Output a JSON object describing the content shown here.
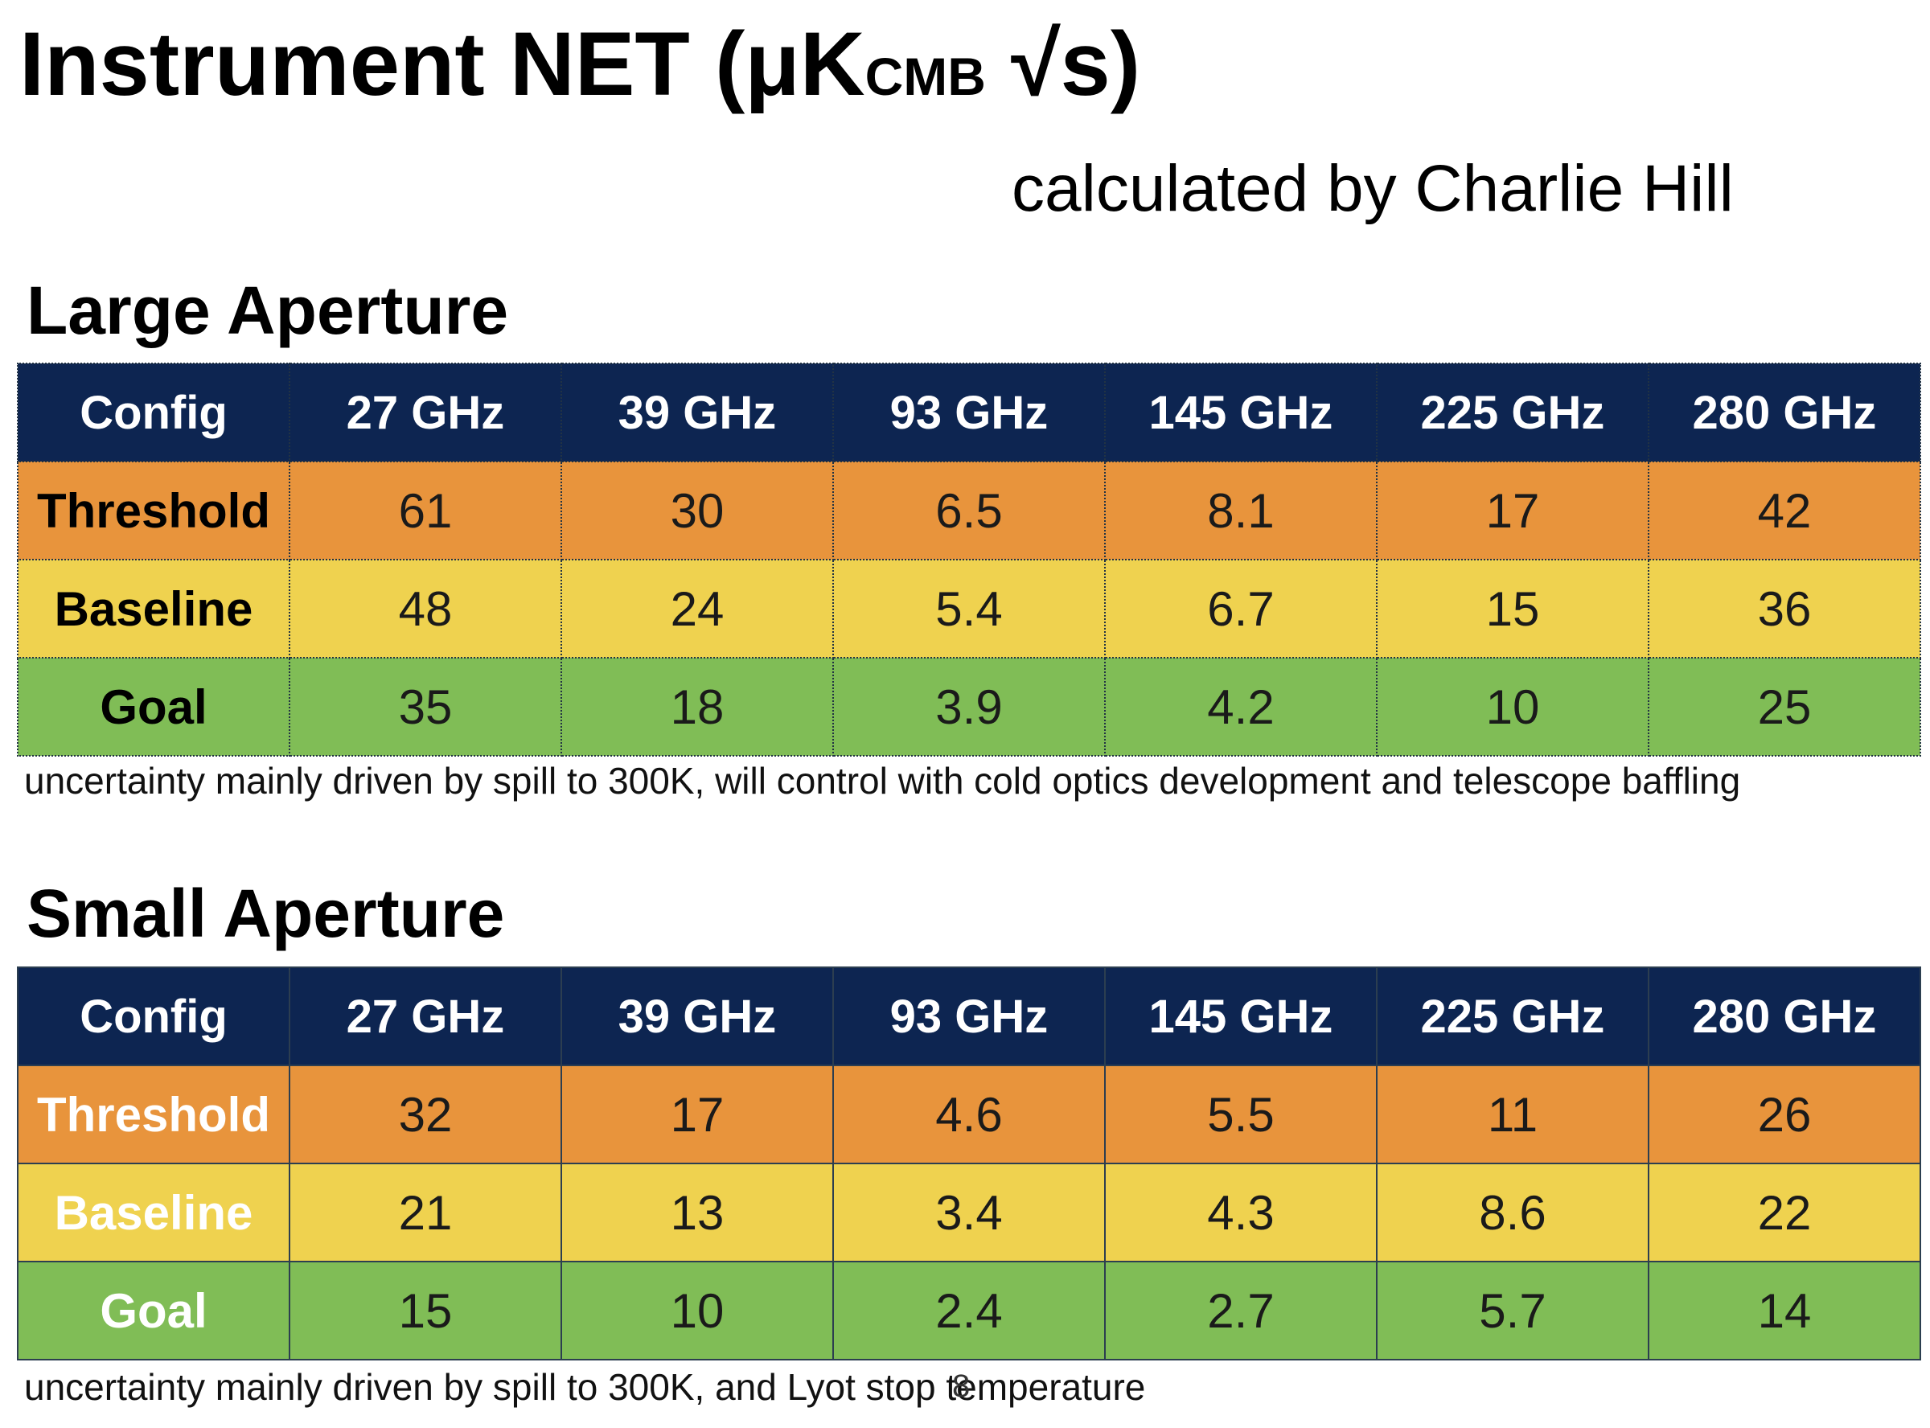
{
  "title": {
    "main": "Instrument NET (μK",
    "subscript": "CMB",
    "suffix": " √s)"
  },
  "credit": "calculated by Charlie Hill",
  "columns": [
    "Config",
    "27 GHz",
    "39 GHz",
    "93 GHz",
    "145 GHz",
    "225 GHz",
    "280 GHz"
  ],
  "large_aperture": {
    "title": "Large Aperture",
    "rows": [
      {
        "config": "Threshold",
        "values": [
          "61",
          "30",
          "6.5",
          "8.1",
          "17",
          "42"
        ]
      },
      {
        "config": "Baseline",
        "values": [
          "48",
          "24",
          "5.4",
          "6.7",
          "15",
          "36"
        ]
      },
      {
        "config": "Goal",
        "values": [
          "35",
          "18",
          "3.9",
          "4.2",
          "10",
          "25"
        ]
      }
    ],
    "note": "uncertainty mainly driven by spill to 300K, will control with cold optics development and telescope baffling"
  },
  "small_aperture": {
    "title": "Small Aperture",
    "rows": [
      {
        "config": "Threshold",
        "values": [
          "32",
          "17",
          "4.6",
          "5.5",
          "11",
          "26"
        ]
      },
      {
        "config": "Baseline",
        "values": [
          "21",
          "13",
          "3.4",
          "4.3",
          "8.6",
          "22"
        ]
      },
      {
        "config": "Goal",
        "values": [
          "15",
          "10",
          "2.4",
          "2.7",
          "5.7",
          "14"
        ]
      }
    ],
    "note": "uncertainty mainly driven by spill to 300K, and Lyot stop temperature"
  },
  "page_number": "8",
  "colors": {
    "header": "#0d2551",
    "threshold": "#e8943c",
    "baseline": "#efd24f",
    "goal": "#80bd56"
  }
}
